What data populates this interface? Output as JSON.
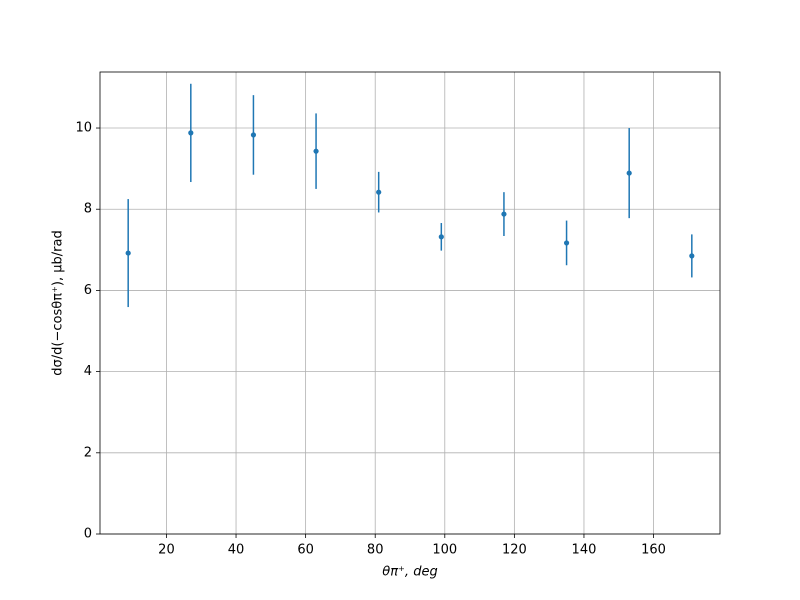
{
  "chart_data": {
    "type": "errorbar",
    "x_label": "θπ⁺, deg",
    "y_label": "dσ/d(−cosθπ⁺), μb/rad",
    "x": [
      9,
      27,
      45,
      63,
      81,
      99,
      117,
      135,
      153,
      171
    ],
    "series": [
      {
        "color": "#1f77b4",
        "values": [
          6.92,
          9.88,
          9.83,
          9.43,
          8.42,
          7.32,
          7.88,
          7.17,
          8.89,
          6.85
        ],
        "errors": [
          1.33,
          1.21,
          0.98,
          0.93,
          0.5,
          0.34,
          0.54,
          0.55,
          1.11,
          0.53
        ]
      }
    ],
    "xlim": [
      0.9,
      179.1
    ],
    "ylim": [
      0,
      11.38
    ],
    "xticks": [
      20,
      40,
      60,
      80,
      100,
      120,
      140,
      160
    ],
    "yticks": [
      0,
      2,
      4,
      6,
      8,
      10
    ],
    "grid": true
  }
}
